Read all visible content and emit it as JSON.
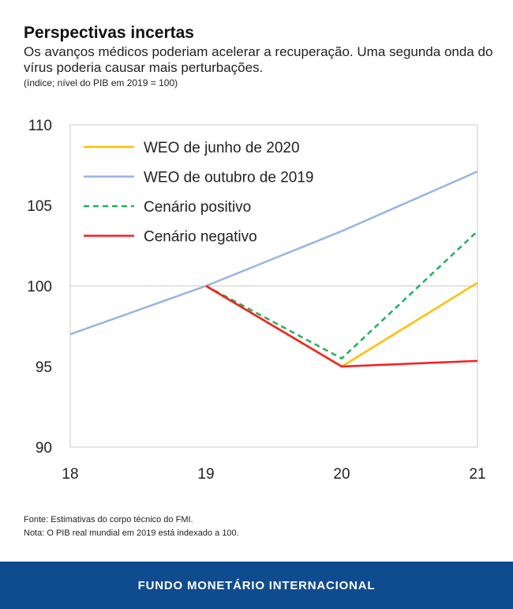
{
  "title": "Perspectivas incertas",
  "subtitle": "Os avanços médicos poderiam acelerar a recuperação. Uma segunda onda do vírus poderia causar mais perturbações.",
  "unit": "(índice; nível do PIB em 2019 = 100)",
  "source": "Fonte: Estimativas do corpo técnico do FMI.",
  "note": "Nota: O PIB real mundial em 2019 está indexado a 100.",
  "footer": "FUNDO MONETÁRIO INTERNACIONAL",
  "chart_data": {
    "type": "line",
    "x": [
      "18",
      "19",
      "20",
      "21"
    ],
    "ylim": [
      90,
      110
    ],
    "yticks": [
      "90",
      "95",
      "100",
      "105",
      "110"
    ],
    "grid": "horizontal at 100",
    "legend": "top-left",
    "series": [
      {
        "name": "WEO de junho de 2020",
        "color": "#ffc000",
        "style": "solid",
        "values": [
          null,
          100,
          95,
          100.2
        ]
      },
      {
        "name": "WEO de outubro de 2019",
        "color": "#98b3e0",
        "style": "solid",
        "values": [
          97,
          100,
          103.4,
          107.1
        ]
      },
      {
        "name": "Cenário positivo",
        "color": "#1fb25a",
        "style": "dashed",
        "values": [
          null,
          100,
          95.5,
          103.4
        ]
      },
      {
        "name": "Cenário negativo",
        "color": "#ff1a1a",
        "style": "solid",
        "values": [
          null,
          100,
          95,
          95.35
        ]
      }
    ]
  }
}
